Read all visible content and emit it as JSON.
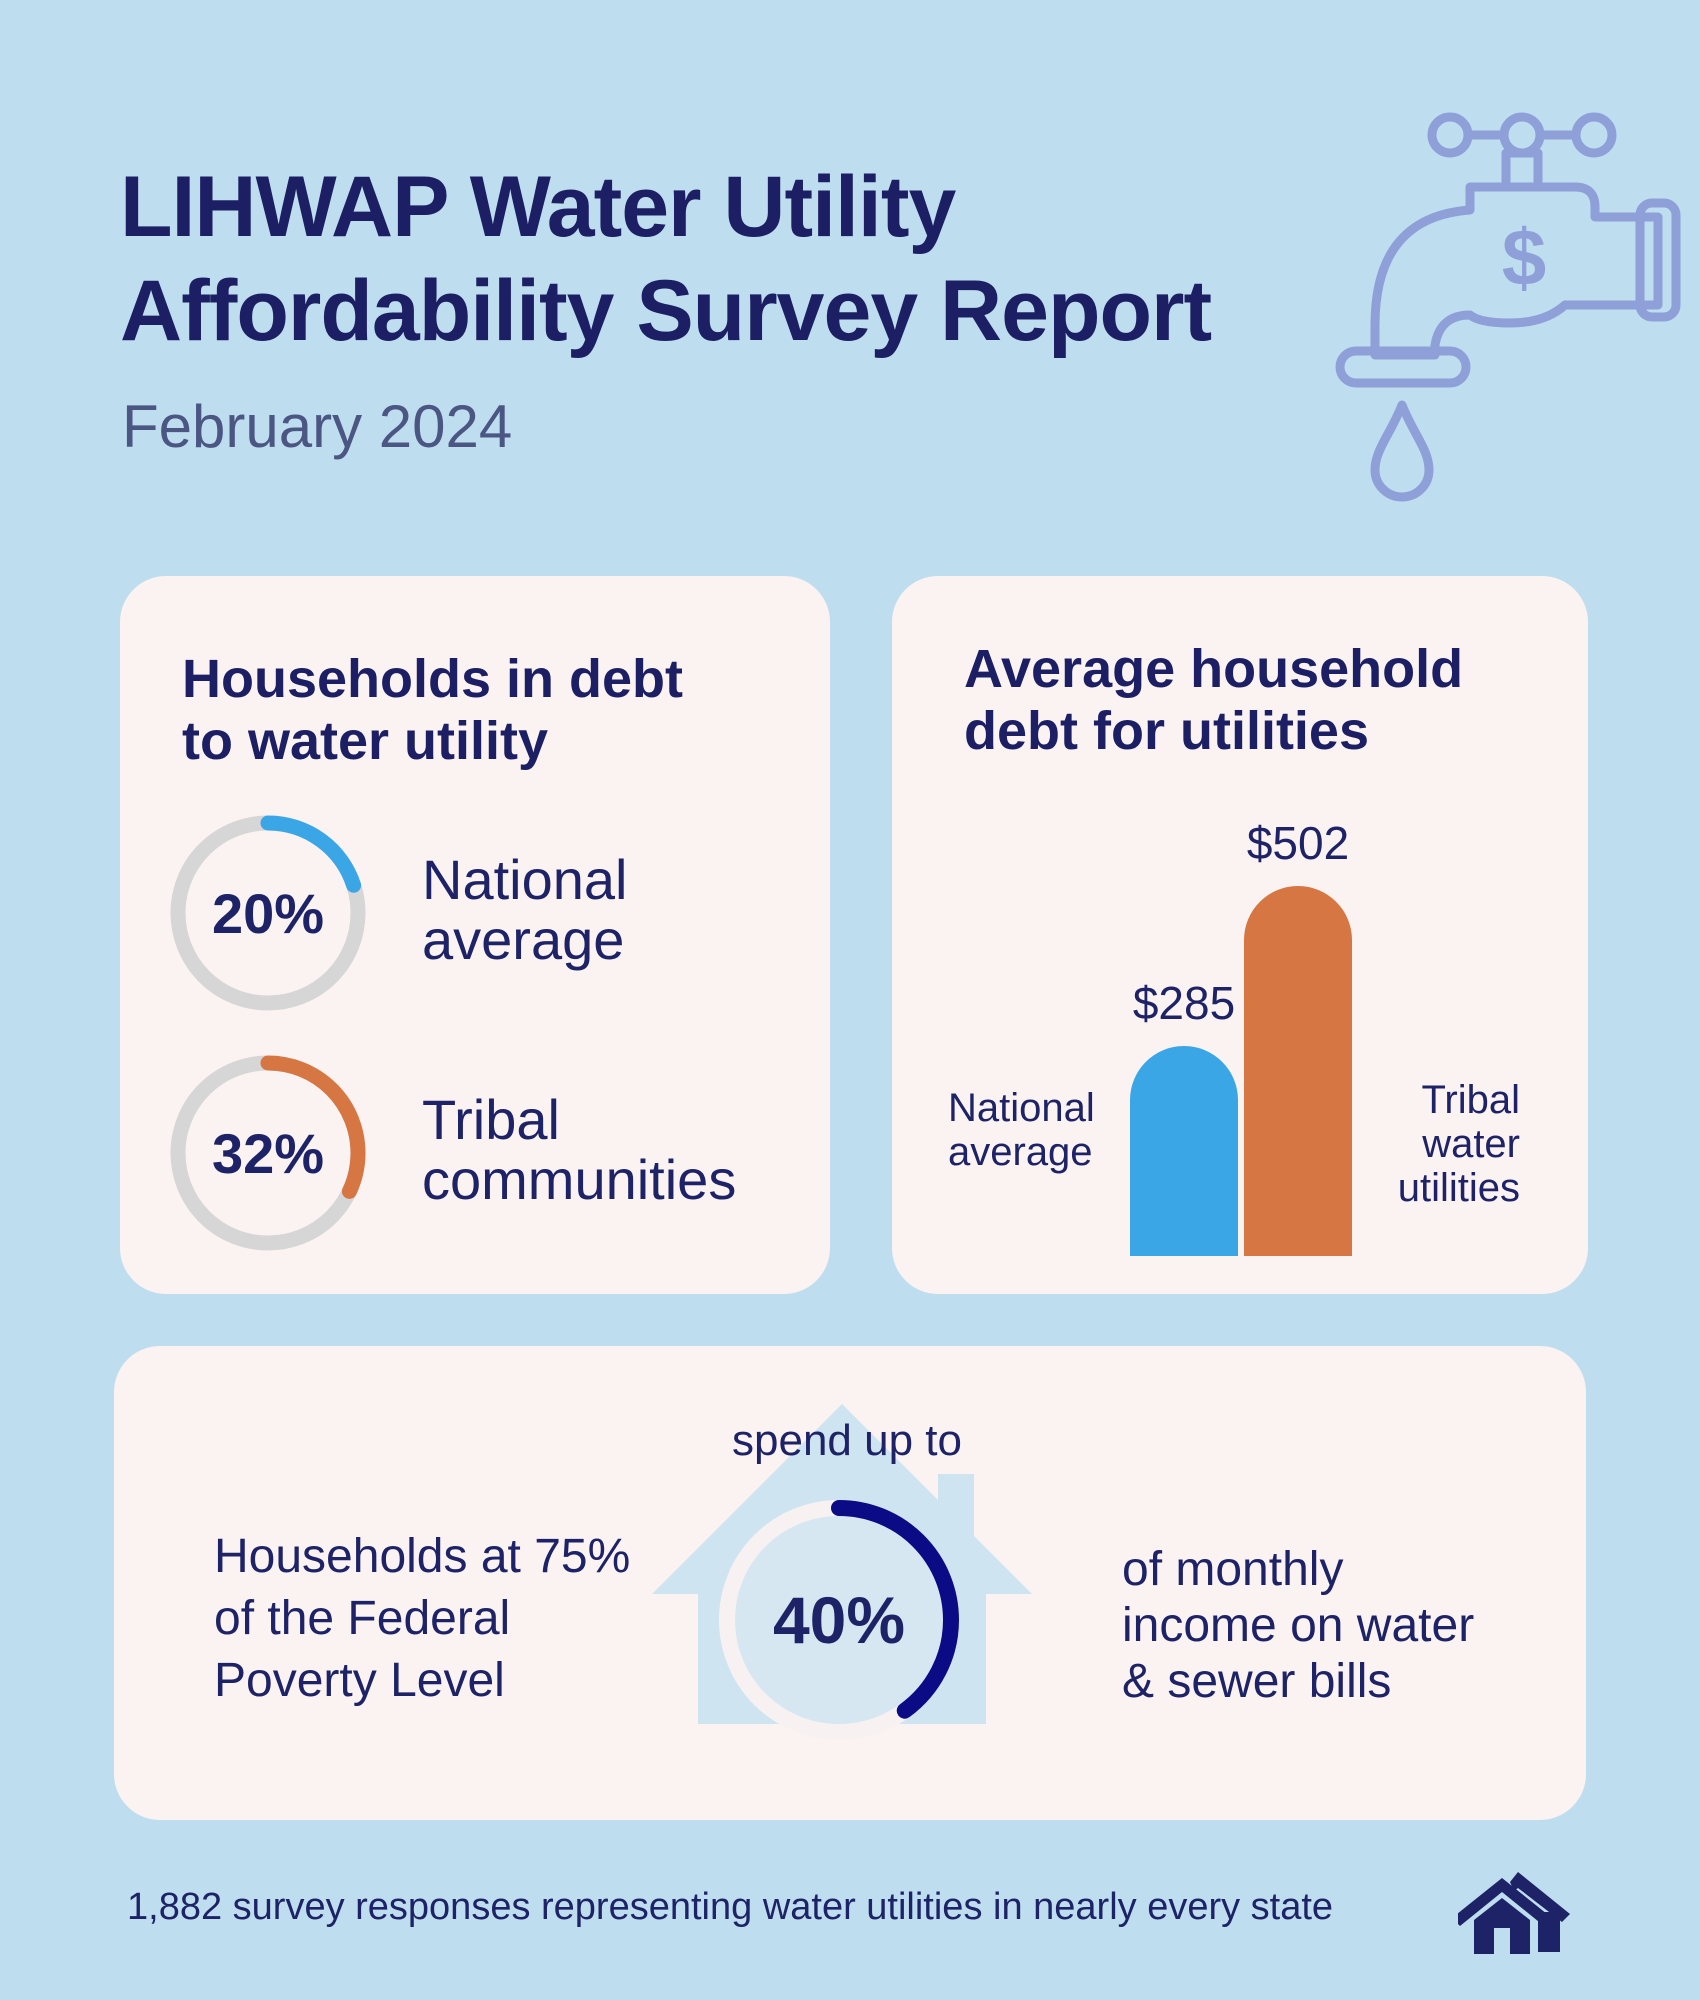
{
  "header": {
    "title_line1": "LIHWAP Water Utility",
    "title_line2": "Affordability Survey Report",
    "subtitle": "February 2024",
    "faucet_icon": "faucet-dollar-icon"
  },
  "debt_households": {
    "heading_line1": "Households in debt",
    "heading_line2": "to water utility",
    "items": [
      {
        "percent_label": "20%",
        "percent": 20,
        "label_line1": "National",
        "label_line2": "average",
        "color": "#3aa6e5"
      },
      {
        "percent_label": "32%",
        "percent": 32,
        "label_line1": "Tribal",
        "label_line2": "communities",
        "color": "#d67642"
      }
    ],
    "track_color": "#d6d6d6"
  },
  "average_debt": {
    "heading_line1": "Average household",
    "heading_line2": "debt for utilities",
    "bars": [
      {
        "value_label": "$285",
        "value": 285,
        "label_lines": [
          "National",
          "average"
        ],
        "color": "#3aa6e5"
      },
      {
        "value_label": "$502",
        "value": 502,
        "label_lines": [
          "Tribal",
          "water",
          "utilities"
        ],
        "color": "#d67642"
      }
    ]
  },
  "poverty": {
    "left_line1": "Households at 75%",
    "left_line2": "of the Federal",
    "left_line3": "Poverty Level",
    "top_text": "spend up to",
    "percent_label": "40%",
    "percent": 40,
    "right_line1": "of monthly",
    "right_line2": "income on water",
    "right_line3": "& sewer bills",
    "ring_color": "#0b0b86",
    "house_icon": "house-icon"
  },
  "footer": {
    "text": "1,882 survey responses representing water utilities in nearly every state",
    "icon": "houses-icon"
  }
}
